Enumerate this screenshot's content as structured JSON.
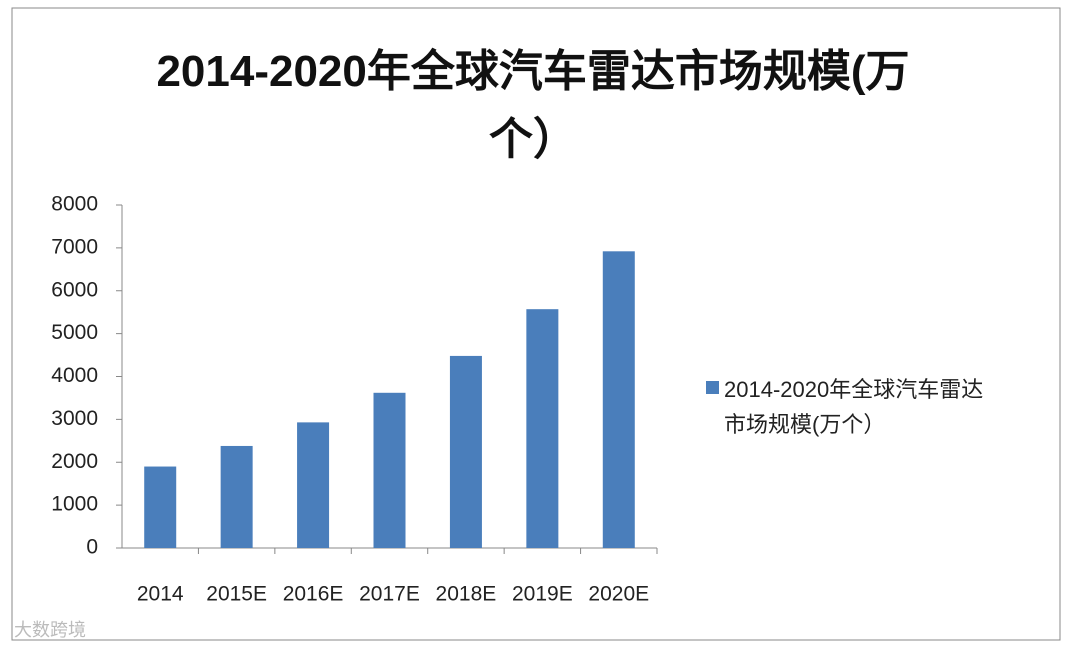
{
  "chart_data": {
    "type": "bar",
    "title": "2014-2020年全球汽车雷达市场规模(万个）",
    "categories": [
      "2014",
      "2015E",
      "2016E",
      "2017E",
      "2018E",
      "2019E",
      "2020E"
    ],
    "series": [
      {
        "name": "2014-2020年全球汽车雷达市场规模(万个）",
        "color": "#4a7ebb",
        "values": [
          1900,
          2380,
          2930,
          3620,
          4480,
          5570,
          6920
        ]
      }
    ],
    "ylim": [
      0,
      8000
    ],
    "yticks": [
      0,
      1000,
      2000,
      3000,
      4000,
      5000,
      6000,
      7000,
      8000
    ],
    "grid": false,
    "legend": "right",
    "watermark": "大数跨境"
  }
}
